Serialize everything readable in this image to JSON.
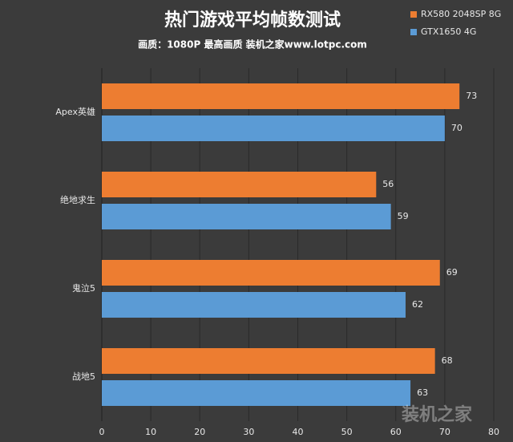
{
  "chart_data": {
    "type": "bar",
    "orientation": "horizontal",
    "title": "热门游戏平均帧数测试",
    "subtitle": "画质：1080P 最高画质 装机之家www.lotpc.com",
    "categories": [
      "Apex英雄",
      "绝地求生",
      "鬼泣5",
      "战地5"
    ],
    "series": [
      {
        "name": "RX580 2048SP 8G",
        "color": "#ed7d31",
        "values": [
          73,
          56,
          69,
          68
        ]
      },
      {
        "name": "GTX1650 4G",
        "color": "#5b9bd5",
        "values": [
          70,
          59,
          62,
          63
        ]
      }
    ],
    "xlim": [
      0,
      80
    ],
    "xticks": [
      0,
      10,
      20,
      30,
      40,
      50,
      60,
      70,
      80
    ],
    "grid": true,
    "legend": "top-right",
    "watermark": "装机之家"
  }
}
